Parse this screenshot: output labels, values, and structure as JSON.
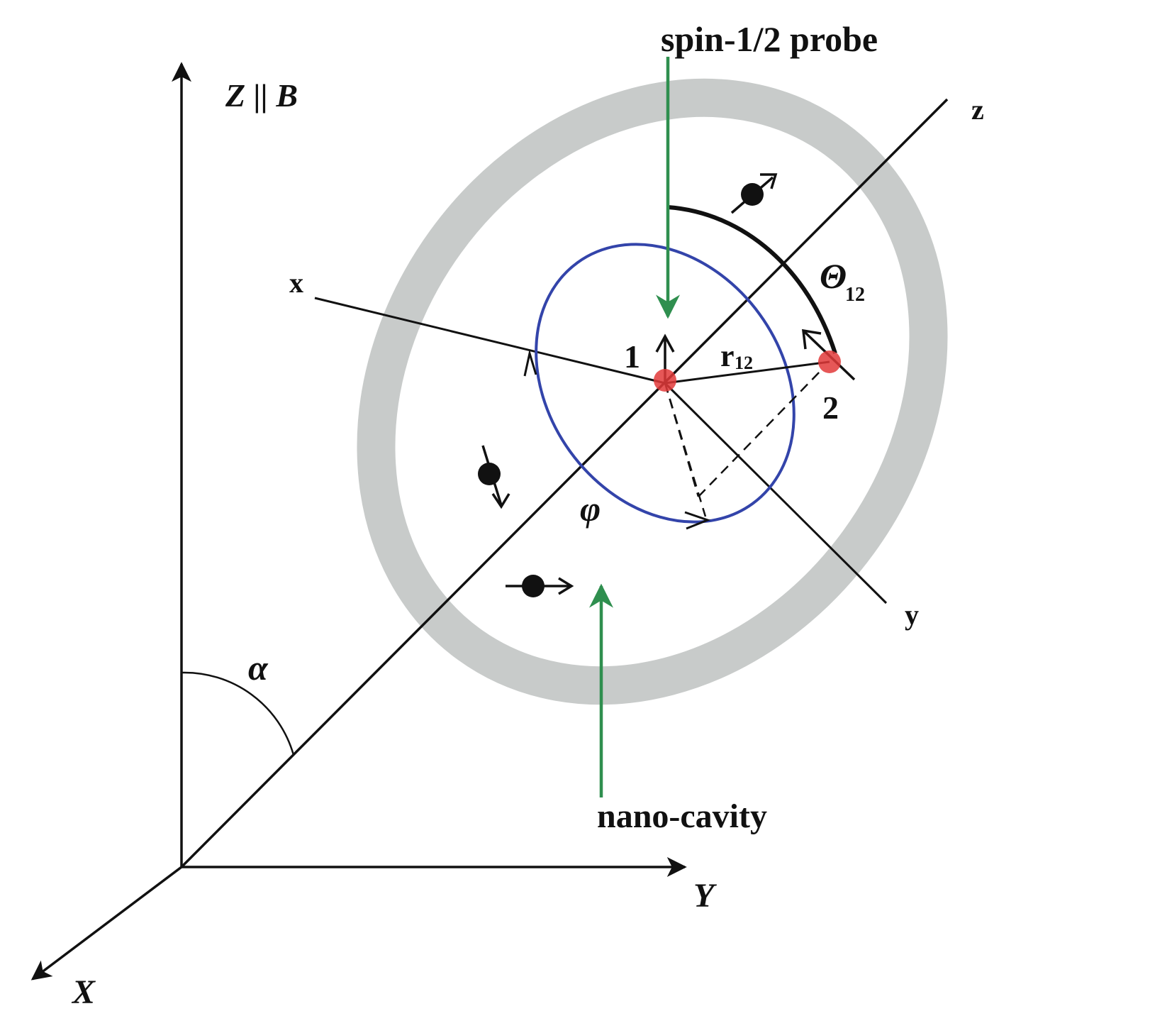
{
  "labels": {
    "lab_axis_Z": "Z || B",
    "lab_axis_Y": "Y",
    "lab_axis_X": "X",
    "lab_alpha": "α",
    "lab_probe": "spin-1/2 probe",
    "lab_local_z": "z",
    "lab_local_x": "x",
    "lab_local_y": "y",
    "lab_theta": "Θ",
    "lab_theta_sub": "12",
    "lab_r": "r",
    "lab_r_sub": "12",
    "lab_spin1": "1",
    "lab_spin2": "2",
    "lab_phi": "φ",
    "lab_cavity": "nano-cavity"
  },
  "colors": {
    "axis": "#111111",
    "cavity_ring": "#c8cbca",
    "orbit": "#3344aa",
    "spin_dot": "#e23a3a",
    "pointer": "#2f8f4f"
  },
  "icons": {
    "electron": "black dot with spin arrow",
    "spin_site": "red dot"
  }
}
